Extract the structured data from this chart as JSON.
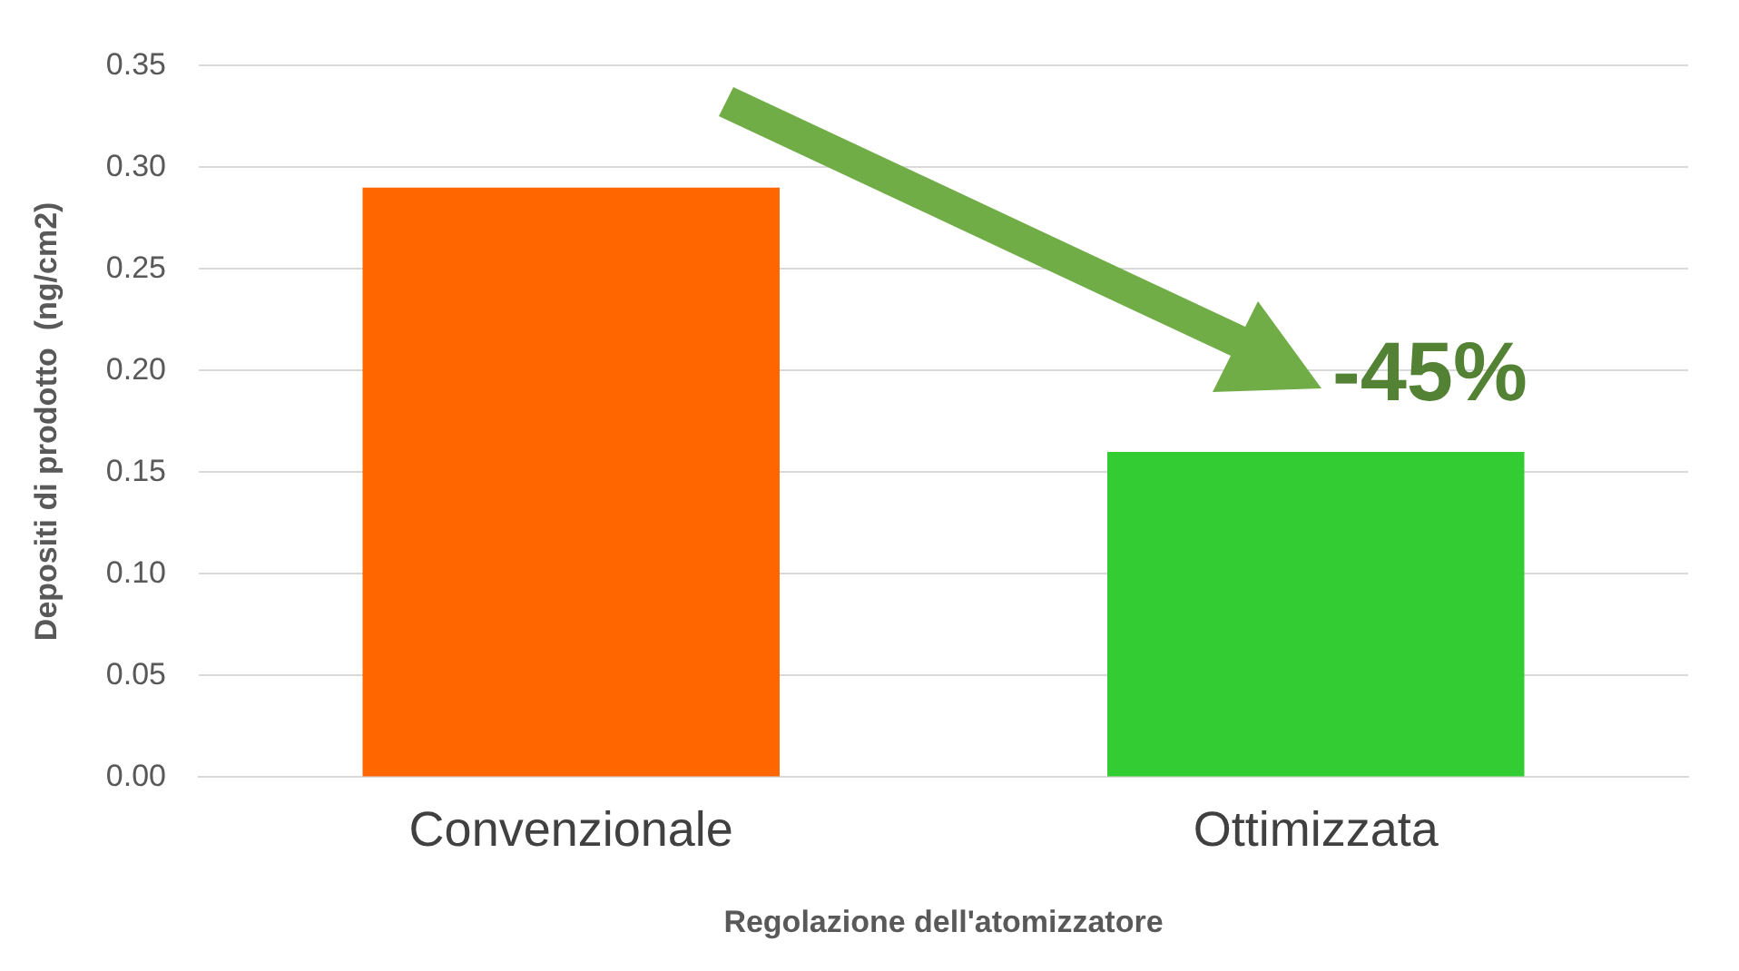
{
  "chart_data": {
    "type": "bar",
    "xlabel": "Regolazione dell'atomizzatore",
    "ylabel": "Depositi di prodotto  (ng/cm2)",
    "categories": [
      "Convenzionale",
      "Ottimizzata"
    ],
    "values": [
      0.29,
      0.16
    ],
    "colors": [
      "#ff6600",
      "#33cc33"
    ],
    "ylim": [
      0,
      0.35
    ],
    "yticks": [
      {
        "value": 0,
        "label": "0.00"
      },
      0.05,
      {
        "value": 0.1,
        "label": "0.10"
      },
      0.15,
      {
        "value": 0.2,
        "label": "0.20"
      },
      0.25,
      {
        "value": 0.3,
        "label": "0.30"
      },
      0.35
    ],
    "grid": "y",
    "legend": false,
    "annotations": [
      "-45%"
    ]
  }
}
